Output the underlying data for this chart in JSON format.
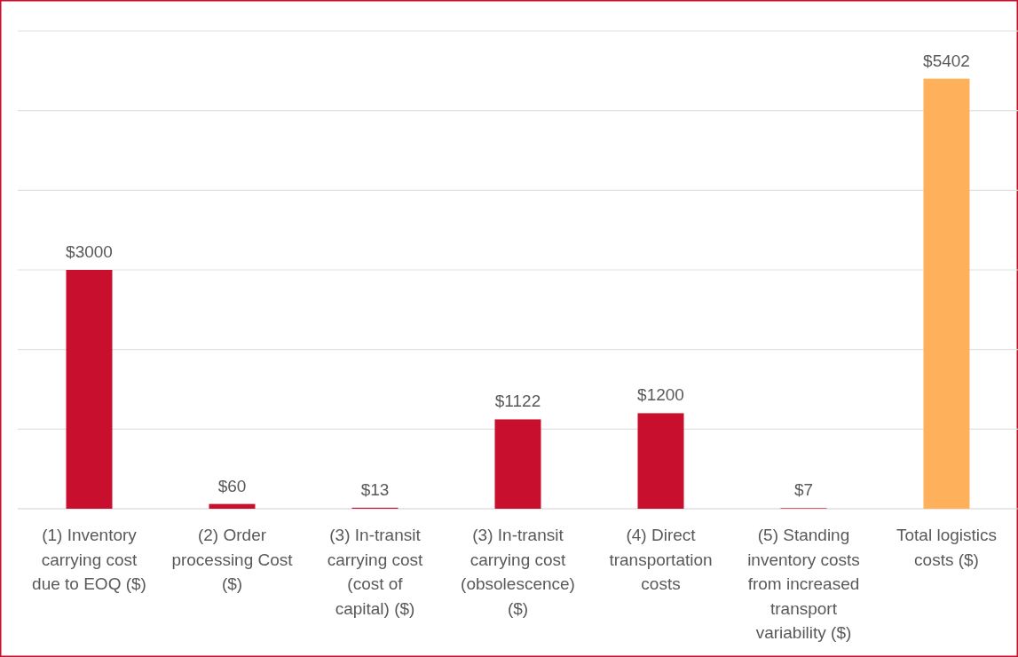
{
  "chart_data": {
    "type": "bar",
    "categories": [
      "(1) Inventory carrying cost due to EOQ ($)",
      "(2) Order processing Cost ($)",
      "(3) In-transit carrying cost (cost of capital) ($)",
      "(3) In-transit carrying cost (obsolescence) ($)",
      "(4) Direct transportation costs",
      "(5) Standing inventory costs from increased transport variability ($)",
      "Total logistics costs ($)"
    ],
    "values": [
      3000,
      60,
      13,
      1122,
      1200,
      7,
      5402
    ],
    "value_labels": [
      "$3000",
      "$60",
      "$13",
      "$1122",
      "$1200",
      "$7",
      "$5402"
    ],
    "colors": [
      "#c8102e",
      "#c8102e",
      "#c8102e",
      "#c8102e",
      "#c8102e",
      "#c8102e",
      "#ffb05a"
    ],
    "ylim": [
      0,
      6000
    ],
    "yticks": [
      {
        "value": 0,
        "label": null
      },
      {
        "value": 1000,
        "label": null
      },
      {
        "value": 2000,
        "label": null
      },
      {
        "value": 3000,
        "label": null
      },
      {
        "value": 4000,
        "label": null
      },
      {
        "value": 5000,
        "label": null
      },
      {
        "value": 6000,
        "label": null
      }
    ],
    "grid": "y",
    "tick_labels": "x"
  }
}
